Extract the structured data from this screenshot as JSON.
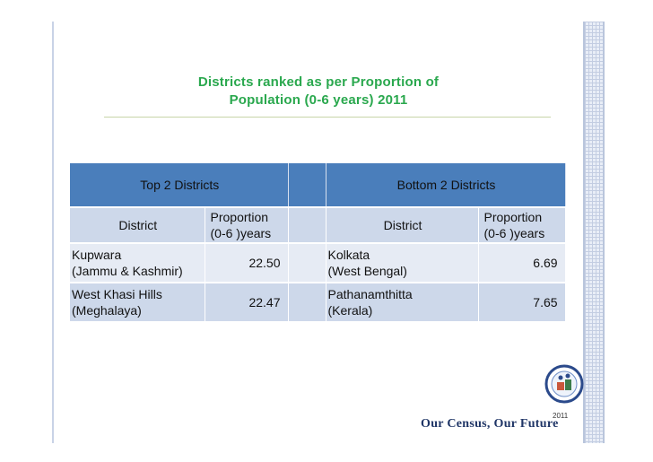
{
  "slide": {
    "title_line1": "Districts ranked as per Proportion of",
    "title_line2": "Population (0-6 years) 2011",
    "tagline": "Our Census, Our Future",
    "logo_year": "2011"
  },
  "table": {
    "top_header": "Top 2 Districts",
    "bottom_header": "Bottom 2 Districts",
    "col_district": "District",
    "col_prop_line1": "Proportion",
    "col_prop_line2": "(0-6 )years",
    "top": [
      {
        "name_line1": "Kupwara",
        "name_line2": "(Jammu & Kashmir)",
        "value": "22.50"
      },
      {
        "name_line1": "West Khasi Hills",
        "name_line2": "(Meghalaya)",
        "value": "22.47"
      }
    ],
    "bottom": [
      {
        "name_line1": "Kolkata",
        "name_line2": "(West Bengal)",
        "value": "6.69"
      },
      {
        "name_line1": "Pathanamthitta",
        "name_line2": "(Kerala)",
        "value": "7.65"
      }
    ]
  },
  "colors": {
    "title": "#2aa84e",
    "header_blue": "#4a7ebb",
    "row_light": "#e6ebf4",
    "row_dark": "#cdd8ea",
    "tagline": "#1f3566"
  }
}
